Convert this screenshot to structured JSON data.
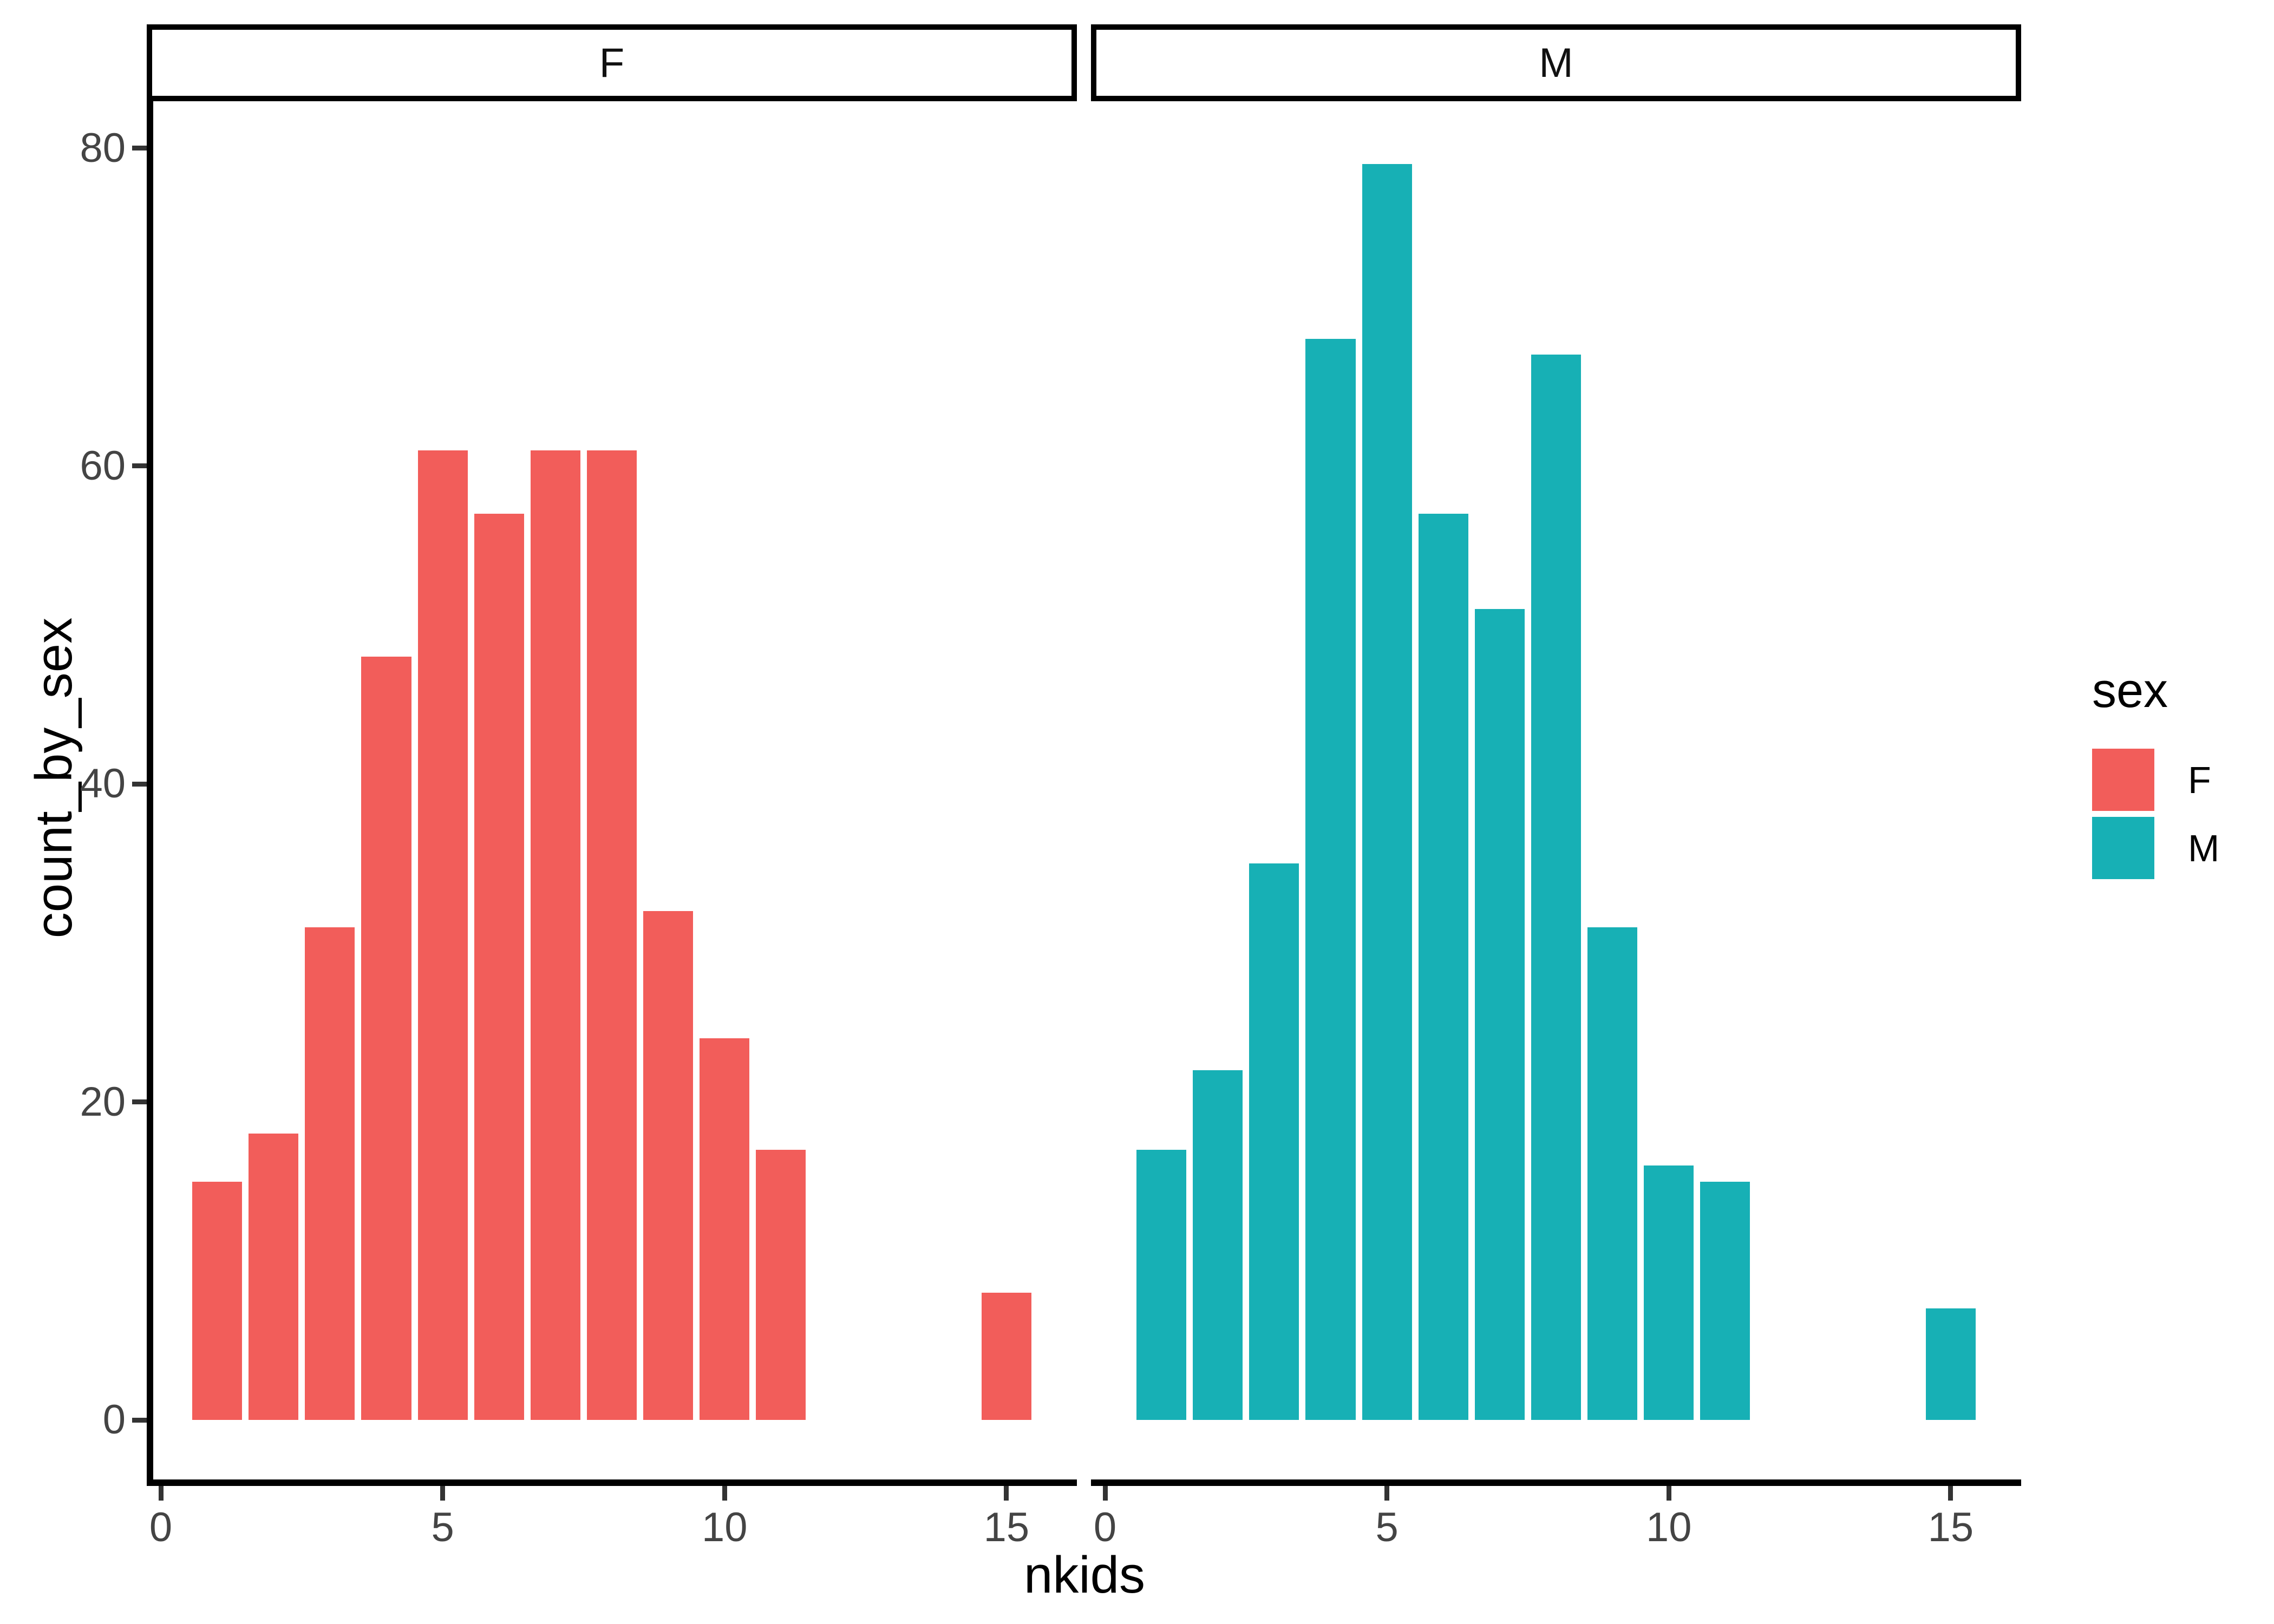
{
  "chart_data": {
    "type": "bar",
    "subtype": "faceted-histogram",
    "title": "",
    "xlabel": "nkids",
    "ylabel": "count_by_sex",
    "x_ticks": [
      0,
      5,
      10,
      15
    ],
    "y_ticks": [
      0,
      20,
      40,
      60,
      80
    ],
    "xlim": [
      -0.25,
      16.25
    ],
    "ylim": [
      -3.95,
      82.95
    ],
    "binwidth": 1,
    "grid": false,
    "facets": [
      {
        "label": "F",
        "color": "#F25D5A",
        "x": [
          1,
          2,
          3,
          4,
          5,
          6,
          7,
          8,
          9,
          10,
          11,
          15
        ],
        "counts": [
          15,
          18,
          31,
          48,
          61,
          57,
          61,
          61,
          32,
          24,
          17,
          8
        ]
      },
      {
        "label": "M",
        "color": "#17B0B5",
        "x": [
          1,
          2,
          3,
          4,
          5,
          6,
          7,
          8,
          9,
          10,
          11,
          15
        ],
        "counts": [
          17,
          22,
          35,
          68,
          79,
          57,
          51,
          67,
          31,
          16,
          15,
          7
        ]
      }
    ],
    "legend": {
      "title": "sex",
      "position": "middle-right",
      "entries": [
        {
          "label": "F",
          "color": "#F25D5A"
        },
        {
          "label": "M",
          "color": "#17B0B5"
        }
      ]
    }
  },
  "colors": {
    "axis_line": "#000000",
    "tick_mark": "#333333",
    "tick_label": "#444444",
    "strip_border": "#000000",
    "strip_bg": "#ffffff",
    "panel_bg": "#ffffff",
    "text": "#000000"
  }
}
